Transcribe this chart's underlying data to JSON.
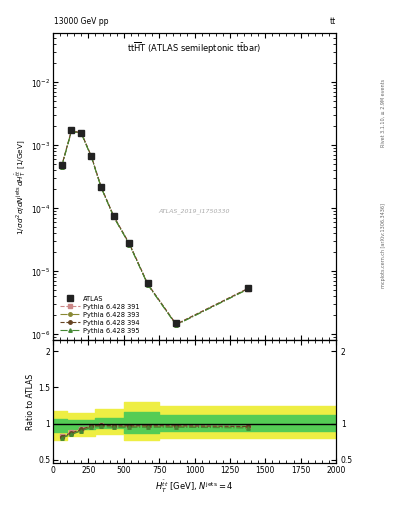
{
  "top_left_label": "13000 GeV pp",
  "top_right_label": "tt",
  "title_text": "tt$\\overline{\\rm H}$T (ATLAS semileptonic t$\\bar{\\rm t}$bar)",
  "watermark": "ATLAS_2019_I1750330",
  "right_label1": "Rivet 3.1.10, ≥ 2.9M events",
  "right_label2": "mcplots.cern.ch [arXiv:1306.3436]",
  "ylabel_main": "$1/\\sigma\\,d^2\\sigma / d N^{\\rm jets}\\,d H_T^{\\bar{t}t}$ [1/GeV]",
  "ylabel_ratio": "Ratio to ATLAS",
  "xlabel": "$H_T^{\\bar{t}t}$ [GeV], $N^{\\rm jets} = 4$",
  "x_pts": [
    60,
    130,
    200,
    270,
    340,
    430,
    540,
    670,
    870,
    1375
  ],
  "atlas_y": [
    0.00048,
    0.00172,
    0.00158,
    0.00068,
    0.00022,
    7.5e-05,
    2.8e-05,
    6.5e-06,
    1.5e-06,
    5.5e-06
  ],
  "py391_ratio": [
    0.97,
    1.0,
    1.0,
    1.0,
    1.0,
    0.99,
    0.98,
    0.97,
    0.97,
    0.97
  ],
  "py393_ratio": [
    0.95,
    0.98,
    0.98,
    0.98,
    0.98,
    0.97,
    0.96,
    0.95,
    0.95,
    0.95
  ],
  "py394_ratio": [
    0.96,
    0.99,
    0.99,
    0.99,
    0.99,
    0.98,
    0.97,
    0.96,
    0.96,
    0.96
  ],
  "py395_ratio": [
    0.94,
    0.97,
    0.97,
    0.97,
    0.97,
    0.96,
    0.95,
    0.94,
    0.94,
    0.94
  ],
  "ratio_x": [
    60,
    130,
    200,
    270,
    340,
    430,
    540,
    670,
    870,
    1375
  ],
  "r391": [
    0.83,
    0.88,
    0.93,
    0.97,
    0.98,
    0.97,
    0.97,
    0.97,
    0.97,
    0.96
  ],
  "r393": [
    0.81,
    0.86,
    0.91,
    0.96,
    0.97,
    0.96,
    0.96,
    0.96,
    0.96,
    0.95
  ],
  "r394": [
    0.82,
    0.87,
    0.92,
    0.97,
    0.98,
    0.97,
    0.97,
    0.97,
    0.97,
    0.96
  ],
  "r395": [
    0.8,
    0.85,
    0.9,
    0.95,
    0.96,
    0.95,
    0.95,
    0.95,
    0.95,
    0.94
  ],
  "band_x": [
    0,
    100,
    300,
    500,
    750,
    2000
  ],
  "band_yel_lo": [
    0.78,
    0.83,
    0.86,
    0.78,
    0.8,
    0.8
  ],
  "band_yel_hi": [
    1.18,
    1.15,
    1.2,
    1.3,
    1.25,
    1.25
  ],
  "band_grn_lo": [
    0.88,
    0.93,
    0.94,
    0.87,
    0.9,
    0.9
  ],
  "band_grn_hi": [
    1.07,
    1.05,
    1.08,
    1.16,
    1.12,
    1.12
  ],
  "color_atlas": "#222222",
  "color_391": "#cc8888",
  "color_393": "#888833",
  "color_394": "#664422",
  "color_395": "#448833",
  "color_grn": "#55cc55",
  "color_yel": "#eeee44",
  "xlim": [
    0,
    2000
  ],
  "ylim_main": [
    8e-07,
    0.06
  ],
  "ylim_ratio": [
    0.45,
    2.15
  ],
  "yticks_ratio": [
    0.5,
    1.0,
    1.5,
    2.0
  ]
}
